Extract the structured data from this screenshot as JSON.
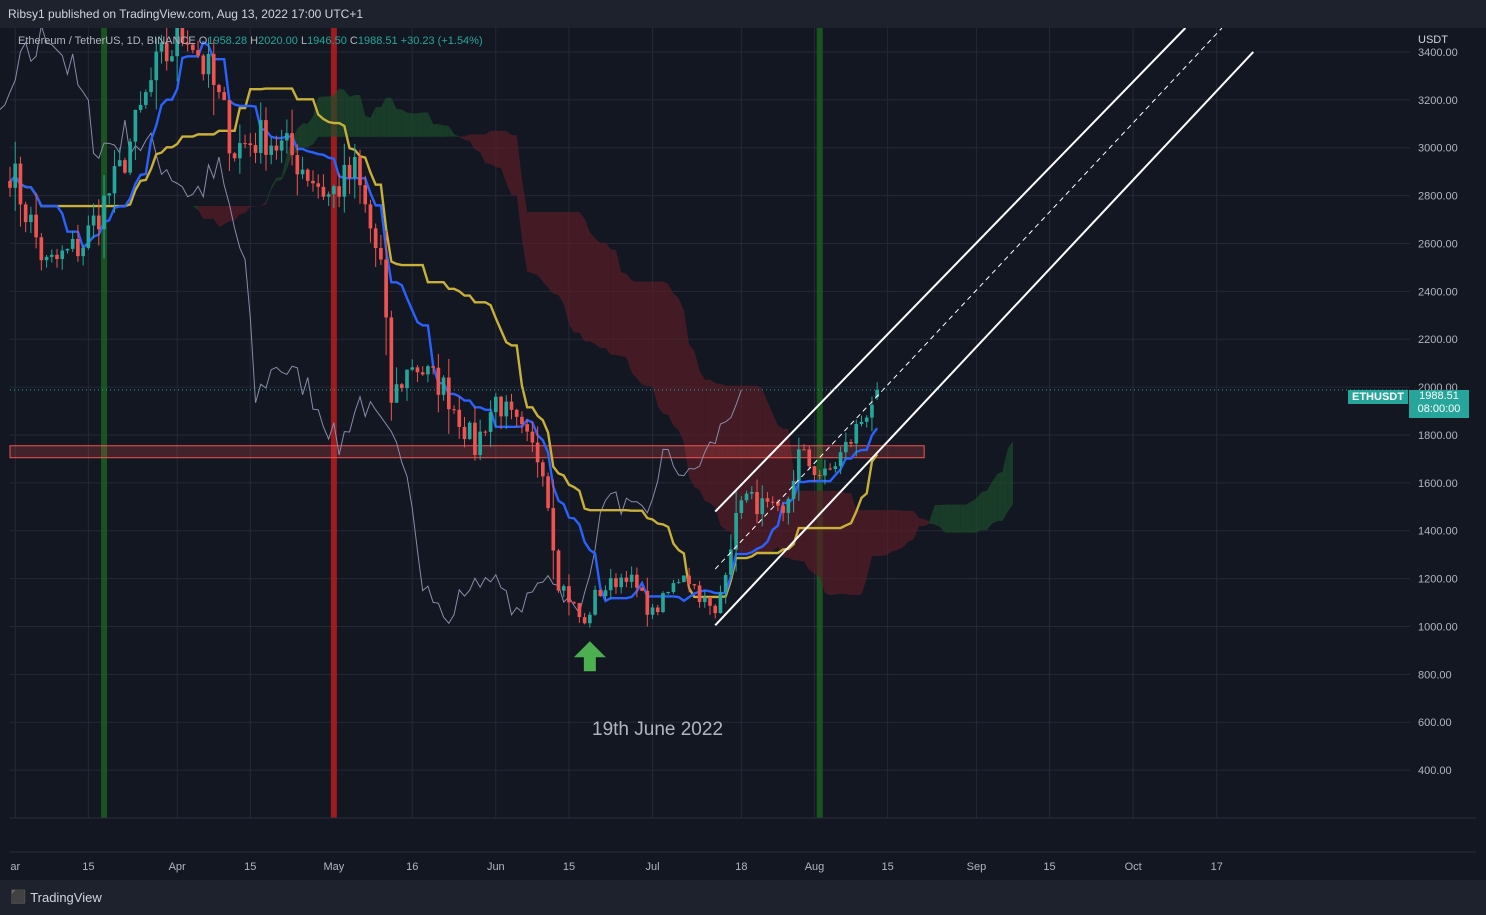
{
  "header": {
    "publisher": "Ribsy1 published on TradingView.com, Aug 13, 2022 17:00 UTC+1"
  },
  "legend": {
    "symbol": "Ethereum / TetherUS, 1D, BINANCE",
    "open_label": "O",
    "open": "1958.28",
    "high_label": "H",
    "high": "2020.00",
    "low_label": "L",
    "low": "1946.50",
    "close_label": "C",
    "close": "1988.51",
    "change": "+30.23 (+1.54%)"
  },
  "price_axis": {
    "unit": "USDT"
  },
  "last_price": {
    "ticker": "ETHUSDT",
    "price": "1988.51",
    "countdown": "08:00:00"
  },
  "annotation": {
    "text": "19th June 2022"
  },
  "footer": {
    "brand": "TradingView"
  },
  "colors": {
    "bull": "#26a69a",
    "bear": "#ef5350",
    "baseline": "#2962ff",
    "conversion": "#c9b038",
    "lagging": "#8a8aa8",
    "cloud": "#5a1e27",
    "arrow": "#4caf50"
  },
  "chart_data": {
    "type": "candlestick",
    "ylim": [
      200,
      3500
    ],
    "y_ticks": [
      400,
      600,
      800,
      1000,
      1200,
      1400,
      1600,
      1800,
      2000,
      2200,
      2400,
      2600,
      2800,
      3000,
      3200,
      3400
    ],
    "y_tick_labels": [
      "400.00",
      "600.00",
      "800.00",
      "1000.00",
      "1200.00",
      "1400.00",
      "1600.00",
      "1800.00",
      "2000.00",
      "2200.00",
      "2400.00",
      "2600.00",
      "2800.00",
      "3000.00",
      "3200.00",
      "3400.00"
    ],
    "x_start": "2022-02-28",
    "x_end": "2022-11-23",
    "x_ticks": [
      {
        "date": "2022-03-01",
        "label": "ar"
      },
      {
        "date": "2022-03-15",
        "label": "15"
      },
      {
        "date": "2022-04-01",
        "label": "Apr"
      },
      {
        "date": "2022-04-15",
        "label": "15"
      },
      {
        "date": "2022-05-01",
        "label": "May"
      },
      {
        "date": "2022-05-16",
        "label": "16"
      },
      {
        "date": "2022-06-01",
        "label": "Jun"
      },
      {
        "date": "2022-06-15",
        "label": "15"
      },
      {
        "date": "2022-07-01",
        "label": "Jul"
      },
      {
        "date": "2022-07-18",
        "label": "18"
      },
      {
        "date": "2022-08-01",
        "label": "Aug"
      },
      {
        "date": "2022-08-15",
        "label": "15"
      },
      {
        "date": "2022-09-01",
        "label": "Sep"
      },
      {
        "date": "2022-09-15",
        "label": "15"
      },
      {
        "date": "2022-10-01",
        "label": "Oct"
      },
      {
        "date": "2022-10-17",
        "label": "17"
      }
    ],
    "close_waypoints": [
      [
        "2022-02-28",
        2920
      ],
      [
        "2022-03-07",
        2500
      ],
      [
        "2022-03-14",
        2600
      ],
      [
        "2022-03-21",
        2900
      ],
      [
        "2022-03-28",
        3330
      ],
      [
        "2022-04-03",
        3500
      ],
      [
        "2022-04-08",
        3250
      ],
      [
        "2022-04-12",
        3000
      ],
      [
        "2022-04-18",
        3050
      ],
      [
        "2022-04-24",
        2950
      ],
      [
        "2022-04-30",
        2800
      ],
      [
        "2022-05-05",
        2900
      ],
      [
        "2022-05-10",
        2500
      ],
      [
        "2022-05-12",
        1950
      ],
      [
        "2022-05-16",
        2100
      ],
      [
        "2022-05-22",
        2000
      ],
      [
        "2022-05-28",
        1750
      ],
      [
        "2022-06-01",
        1950
      ],
      [
        "2022-06-06",
        1800
      ],
      [
        "2022-06-10",
        1680
      ],
      [
        "2022-06-13",
        1200
      ],
      [
        "2022-06-18",
        1000
      ],
      [
        "2022-06-20",
        1130
      ],
      [
        "2022-06-26",
        1220
      ],
      [
        "2022-07-01",
        1050
      ],
      [
        "2022-07-07",
        1230
      ],
      [
        "2022-07-13",
        1040
      ],
      [
        "2022-07-18",
        1550
      ],
      [
        "2022-07-26",
        1450
      ],
      [
        "2022-07-29",
        1720
      ],
      [
        "2022-08-03",
        1620
      ],
      [
        "2022-08-08",
        1780
      ],
      [
        "2022-08-13",
        1988
      ]
    ],
    "bands": [
      {
        "date": "2022-03-18",
        "color": "#1b5e20"
      },
      {
        "date": "2022-05-01",
        "color": "#b71c1c"
      },
      {
        "date": "2022-08-02",
        "color": "#1b5e20"
      }
    ],
    "support_zone": [
      1705,
      1755
    ],
    "channel": {
      "lower": [
        [
          "2022-07-13",
          1005
        ],
        [
          "2022-10-24",
          3400
        ]
      ],
      "upper": [
        [
          "2022-07-13",
          1480
        ],
        [
          "2022-10-11",
          3500
        ]
      ],
      "mid": [
        [
          "2022-07-13",
          1240
        ],
        [
          "2022-10-18",
          3500
        ]
      ]
    },
    "arrow_date": "2022-06-19"
  }
}
